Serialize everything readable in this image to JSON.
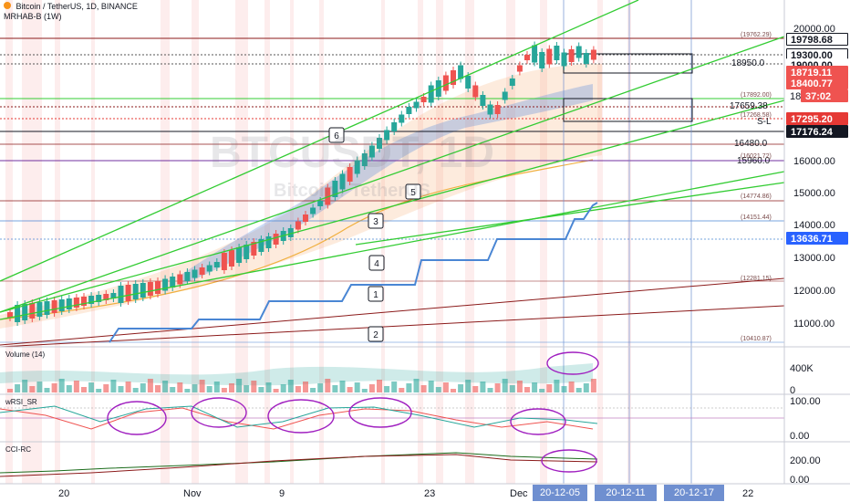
{
  "header": {
    "symbol": "Bitcoin / TetherUS, 1D, BINANCE",
    "indicator": "MRHAB-B (1W)"
  },
  "watermark": {
    "ticker": "BTCUSDT, 1D",
    "name": "Bitcoin / TetherUS"
  },
  "price_axis": {
    "ticks": [
      "20000.00",
      "16000.00",
      "15000.00",
      "14000.00",
      "13000.00",
      "12000.00",
      "11000.00"
    ],
    "tags": [
      {
        "text": "19798.68",
        "bg": "#ffffff",
        "fg": "#131722",
        "border": "#131722"
      },
      {
        "text": "19300.00",
        "bg": "#ffffff",
        "fg": "#131722",
        "border": "#131722"
      },
      {
        "text": "19000.00",
        "bg": "#ffffff",
        "fg": "#131722",
        "border": "#ffffff"
      },
      {
        "text": "18719.11",
        "bg": "#ef5350",
        "fg": "#ffffff",
        "border": "#ef5350"
      },
      {
        "text": "18400.77",
        "bg": "#ef5350",
        "fg": "#ffffff",
        "border": "#ef5350"
      },
      {
        "text": "37:02",
        "bg": "#ef5350",
        "fg": "#ffffff",
        "border": "#ef5350"
      },
      {
        "text": "17295.20",
        "bg": "#e53935",
        "fg": "#ffffff",
        "border": "#e53935"
      },
      {
        "text": "17176.24",
        "bg": "#131722",
        "fg": "#ffffff",
        "border": "#131722"
      },
      {
        "text": "13636.71",
        "bg": "#2962ff",
        "fg": "#ffffff",
        "border": "#2962ff"
      }
    ],
    "partial": "18"
  },
  "chart_levels": {
    "inline": [
      "18950.0",
      "17659.38",
      "S-L",
      "16480.0",
      "15960.0"
    ],
    "small": [
      "(19762.29)",
      "(17892.00)",
      "(17268.58)",
      "(16021.72)",
      "(14774.86)",
      "(14151.44)",
      "(12281.15)",
      "(10410.87)"
    ]
  },
  "wave_labels": [
    "6",
    "5",
    "3",
    "4",
    "1",
    "2"
  ],
  "panes": {
    "volume": {
      "label": "Volume (14)",
      "ticks": [
        "400K",
        "0"
      ]
    },
    "wrsi": {
      "label": "wRSI_SR",
      "ticks": [
        "100.00",
        "0.00"
      ]
    },
    "cci": {
      "label": "CCI-RC",
      "ticks": [
        "200.00",
        "0.00"
      ]
    }
  },
  "time_axis": {
    "labels": [
      "20",
      "Nov",
      "9",
      "23",
      "Dec",
      "22"
    ],
    "date_boxes": [
      "20-12-05",
      "20-12-11",
      "20-12-17"
    ]
  },
  "colors": {
    "bull": "#26a69a",
    "bear": "#ef5350",
    "trend_green": "#33cc33",
    "trend_dark": "#8b1a1a",
    "step_blue": "#4a86d4",
    "annotation_purple": "#a020c0"
  }
}
